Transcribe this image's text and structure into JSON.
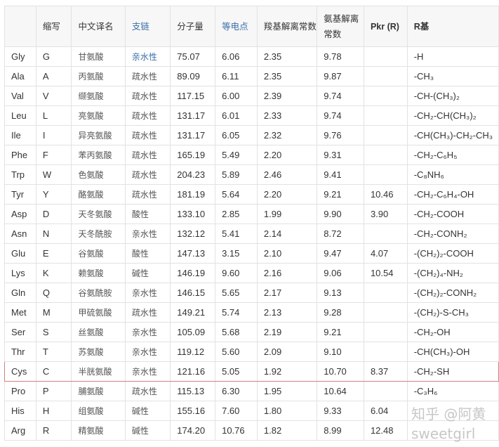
{
  "headers": [
    "",
    "缩写",
    "中文译名",
    "支链",
    "分子量",
    "等电点",
    "羧基解离常数",
    "氨基解离常数",
    "Pkr (R)",
    "R基"
  ],
  "rows": [
    [
      "Gly",
      "G",
      "甘氨酸",
      "亲水性",
      "75.07",
      "6.06",
      "2.35",
      "9.78",
      "",
      "-H"
    ],
    [
      "Ala",
      "A",
      "丙氨酸",
      "疏水性",
      "89.09",
      "6.11",
      "2.35",
      "9.87",
      "",
      "-CH₃"
    ],
    [
      "Val",
      "V",
      "缬氨酸",
      "疏水性",
      "117.15",
      "6.00",
      "2.39",
      "9.74",
      "",
      "-CH-(CH₃)₂"
    ],
    [
      "Leu",
      "L",
      "亮氨酸",
      "疏水性",
      "131.17",
      "6.01",
      "2.33",
      "9.74",
      "",
      "-CH₂-CH(CH₃)₂"
    ],
    [
      "Ile",
      "I",
      "异亮氨酸",
      "疏水性",
      "131.17",
      "6.05",
      "2.32",
      "9.76",
      "",
      "-CH(CH₃)-CH₂-CH₃"
    ],
    [
      "Phe",
      "F",
      "苯丙氨酸",
      "疏水性",
      "165.19",
      "5.49",
      "2.20",
      "9.31",
      "",
      "-CH₂-C₆H₅"
    ],
    [
      "Trp",
      "W",
      "色氨酸",
      "疏水性",
      "204.23",
      "5.89",
      "2.46",
      "9.41",
      "",
      "-C₈NH₆"
    ],
    [
      "Tyr",
      "Y",
      "酪氨酸",
      "疏水性",
      "181.19",
      "5.64",
      "2.20",
      "9.21",
      "10.46",
      "-CH₂-C₆H₄-OH"
    ],
    [
      "Asp",
      "D",
      "天冬氨酸",
      "酸性",
      "133.10",
      "2.85",
      "1.99",
      "9.90",
      "3.90",
      "-CH₂-COOH"
    ],
    [
      "Asn",
      "N",
      "天冬酰胺",
      "亲水性",
      "132.12",
      "5.41",
      "2.14",
      "8.72",
      "",
      "-CH₂-CONH₂"
    ],
    [
      "Glu",
      "E",
      "谷氨酸",
      "酸性",
      "147.13",
      "3.15",
      "2.10",
      "9.47",
      "4.07",
      "-(CH₂)₂-COOH"
    ],
    [
      "Lys",
      "K",
      "赖氨酸",
      "碱性",
      "146.19",
      "9.60",
      "2.16",
      "9.06",
      "10.54",
      "-(CH₂)₄-NH₂"
    ],
    [
      "Gln",
      "Q",
      "谷氨酰胺",
      "亲水性",
      "146.15",
      "5.65",
      "2.17",
      "9.13",
      "",
      "-(CH₂)₂-CONH₂"
    ],
    [
      "Met",
      "M",
      "甲硫氨酸",
      "疏水性",
      "149.21",
      "5.74",
      "2.13",
      "9.28",
      "",
      "-(CH₂)-S-CH₃"
    ],
    [
      "Ser",
      "S",
      "丝氨酸",
      "亲水性",
      "105.09",
      "5.68",
      "2.19",
      "9.21",
      "",
      "-CH₂-OH"
    ],
    [
      "Thr",
      "T",
      "苏氨酸",
      "亲水性",
      "119.12",
      "5.60",
      "2.09",
      "9.10",
      "",
      "-CH(CH₃)-OH"
    ],
    [
      "Cys",
      "C",
      "半胱氨酸",
      "亲水性",
      "121.16",
      "5.05",
      "1.92",
      "10.70",
      "8.37",
      "-CH₂-SH"
    ],
    [
      "Pro",
      "P",
      "脯氨酸",
      "疏水性",
      "115.13",
      "6.30",
      "1.95",
      "10.64",
      "",
      "-C₃H₆"
    ],
    [
      "His",
      "H",
      "组氨酸",
      "碱性",
      "155.16",
      "7.60",
      "1.80",
      "9.33",
      "6.04",
      ""
    ],
    [
      "Arg",
      "R",
      "精氨酸",
      "碱性",
      "174.20",
      "10.76",
      "1.82",
      "8.99",
      "12.48",
      ""
    ]
  ],
  "highlighted_row": "Cys",
  "watermark": "知乎 @阿黄sweetgirl",
  "colors": {
    "link_blue": "#3a6fa8",
    "highlight_border": "#d08080"
  }
}
